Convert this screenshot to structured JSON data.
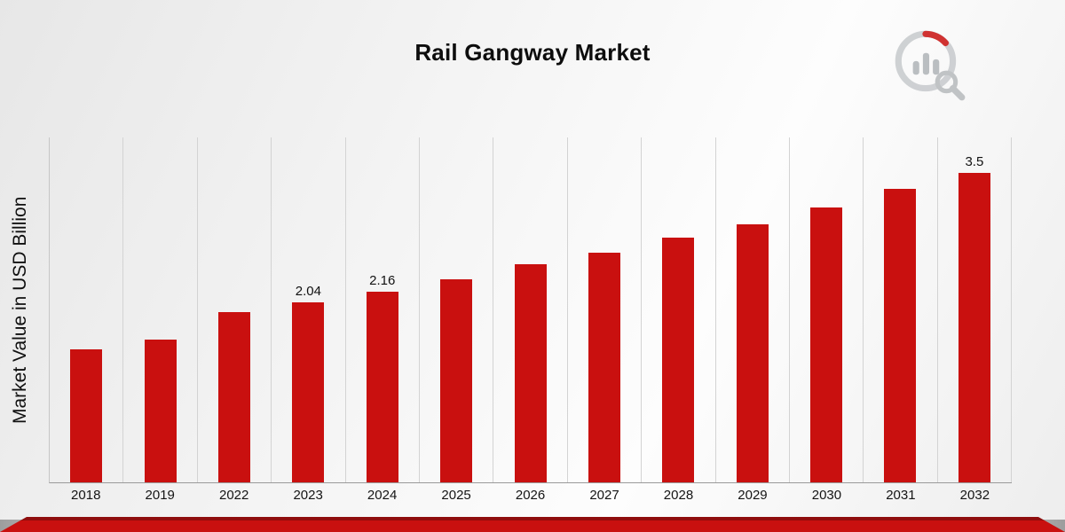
{
  "title": "Rail Gangway Market",
  "y_axis_label": "Market Value in USD Billion",
  "icons": {
    "logo": "bar-chart-magnifier-logo"
  },
  "colors": {
    "bar": "#c9100f",
    "footer_bright_red": "#c9100f",
    "footer_dark_red": "#8f0d0d",
    "grid_line": "#d3d3d3",
    "axis_line": "#9a9a9a",
    "title_text": "#0d0d0d"
  },
  "chart_data": {
    "type": "bar",
    "title": "Rail Gangway Market",
    "xlabel": "",
    "ylabel": "Market Value in USD Billion",
    "categories": [
      "2018",
      "2019",
      "2022",
      "2023",
      "2024",
      "2025",
      "2026",
      "2027",
      "2028",
      "2029",
      "2030",
      "2031",
      "2032"
    ],
    "values": [
      1.5,
      1.61,
      1.93,
      2.04,
      2.16,
      2.3,
      2.47,
      2.6,
      2.77,
      2.92,
      3.11,
      3.32,
      3.5
    ],
    "point_labels": [
      "",
      "",
      "",
      "2.04",
      "2.16",
      "",
      "",
      "",
      "",
      "",
      "",
      "",
      "3.5"
    ],
    "ylim": [
      0,
      3.9
    ],
    "grid": "vertical-only",
    "legend": "none",
    "bar_color": "#c9100f"
  }
}
